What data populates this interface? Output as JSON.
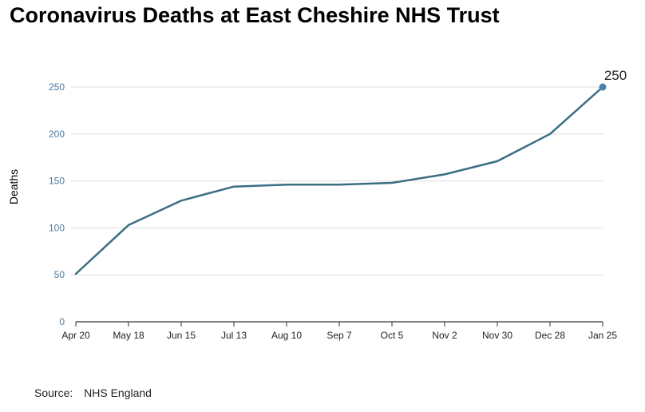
{
  "title": "Coronavirus Deaths at East Cheshire NHS Trust",
  "source_label": "Source:",
  "source_value": "NHS England",
  "colors": {
    "line": "#3b6e84",
    "marker": "#4a7fb0",
    "tick_label": "#4a7ba3",
    "grid": "#dddddd",
    "axis": "#333333"
  },
  "chart_data": {
    "type": "line",
    "title": "Coronavirus Deaths at East Cheshire NHS Trust",
    "ylabel": "Deaths",
    "xlabel": "",
    "categories": [
      "Apr 20",
      "May 18",
      "Jun 15",
      "Jul 13",
      "Aug 10",
      "Sep 7",
      "Oct 5",
      "Nov 2",
      "Nov 30",
      "Dec 28",
      "Jan 25"
    ],
    "series": [
      {
        "values": [
          51,
          103,
          129,
          144,
          146,
          146,
          148,
          157,
          171,
          200,
          250
        ]
      }
    ],
    "ylim": [
      0,
      250
    ],
    "yticks": [
      0,
      50,
      100,
      150,
      200,
      250
    ],
    "grid": true,
    "annotation": {
      "label": "250",
      "index": 10
    }
  }
}
